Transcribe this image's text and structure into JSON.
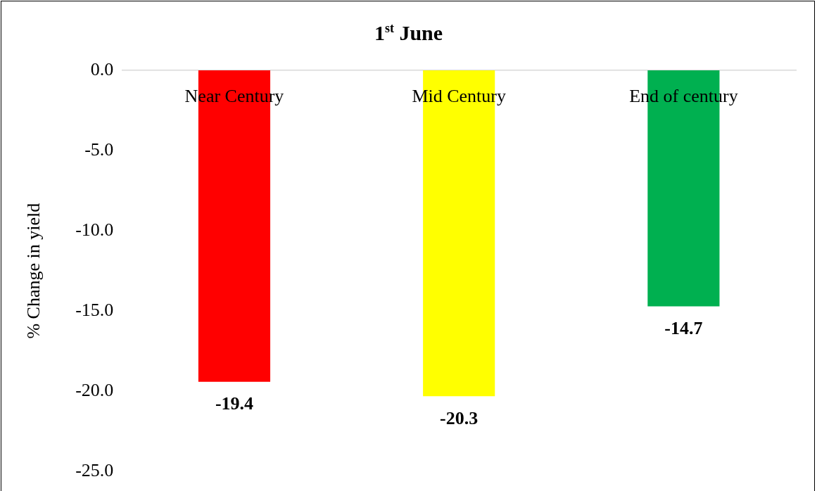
{
  "chart_data": {
    "type": "bar",
    "title": "1$^{st}$ June",
    "ylabel": "% Change in yield",
    "categories": [
      "Near Century",
      "Mid Century",
      "End of century"
    ],
    "values": [
      -19.4,
      -20.3,
      -14.7
    ],
    "colors": [
      "#ff0000",
      "#ffff00",
      "#00b050"
    ],
    "ylim": [
      -25,
      0
    ],
    "yticks": [
      {
        "value": 0,
        "label": "0.0"
      },
      {
        "value": -5,
        "label": "-5.0"
      },
      {
        "value": -10,
        "label": "-10.0"
      },
      {
        "value": -15,
        "label": "-15.0"
      },
      {
        "value": -20,
        "label": "-20.0"
      },
      {
        "value": -25,
        "label": "-25.0"
      }
    ],
    "data_labels": true,
    "grid": false,
    "legend": false
  }
}
